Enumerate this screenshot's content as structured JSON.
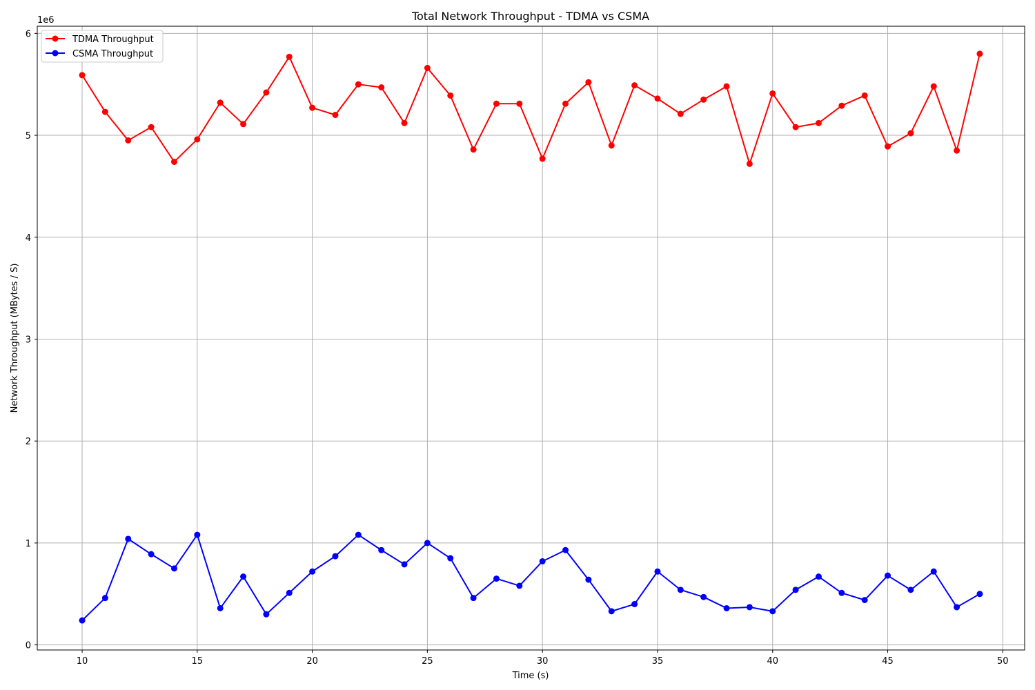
{
  "chart_data": {
    "type": "line",
    "title": "Total Network Throughput - TDMA vs CSMA",
    "xlabel": "Time (s)",
    "ylabel": "Network Throughput (MBytes / S)",
    "y_offset_label": "1e6",
    "xlim": [
      8.05,
      50.95
    ],
    "ylim": [
      -50000,
      6070000
    ],
    "x_ticks": [
      10,
      15,
      20,
      25,
      30,
      35,
      40,
      45,
      50
    ],
    "x_tick_labels": [
      "10",
      "15",
      "20",
      "25",
      "30",
      "35",
      "40",
      "45",
      "50"
    ],
    "y_ticks": [
      0,
      1000000,
      2000000,
      3000000,
      4000000,
      5000000,
      6000000
    ],
    "y_tick_labels": [
      "0",
      "1",
      "2",
      "3",
      "4",
      "5",
      "6"
    ],
    "grid": true,
    "legend_position": "top-left",
    "x": [
      10,
      11,
      12,
      13,
      14,
      15,
      16,
      17,
      18,
      19,
      20,
      21,
      22,
      23,
      24,
      25,
      26,
      27,
      28,
      29,
      30,
      31,
      32,
      33,
      34,
      35,
      36,
      37,
      38,
      39,
      40,
      41,
      42,
      43,
      44,
      45,
      46,
      47,
      48,
      49
    ],
    "series": [
      {
        "name": "TDMA Throughput",
        "color": "#ff0000",
        "marker": "circle",
        "values": [
          5590000,
          5230000,
          4950000,
          5080000,
          4740000,
          4960000,
          5320000,
          5110000,
          5420000,
          5770000,
          5270000,
          5200000,
          5500000,
          5470000,
          5120000,
          5660000,
          5390000,
          4860000,
          5310000,
          5310000,
          4770000,
          5310000,
          5520000,
          4900000,
          5490000,
          5360000,
          5210000,
          5350000,
          5480000,
          4720000,
          5410000,
          5080000,
          5120000,
          5290000,
          5390000,
          4890000,
          5020000,
          5480000,
          4850000,
          5800000
        ]
      },
      {
        "name": "CSMA Throughput",
        "color": "#0000ff",
        "marker": "circle",
        "values": [
          240000,
          460000,
          1040000,
          890000,
          750000,
          1080000,
          360000,
          670000,
          300000,
          510000,
          720000,
          870000,
          1080000,
          930000,
          790000,
          1000000,
          850000,
          460000,
          650000,
          580000,
          820000,
          930000,
          640000,
          330000,
          400000,
          720000,
          540000,
          470000,
          360000,
          370000,
          330000,
          540000,
          670000,
          510000,
          440000,
          680000,
          540000,
          720000,
          370000,
          500000
        ]
      }
    ]
  }
}
